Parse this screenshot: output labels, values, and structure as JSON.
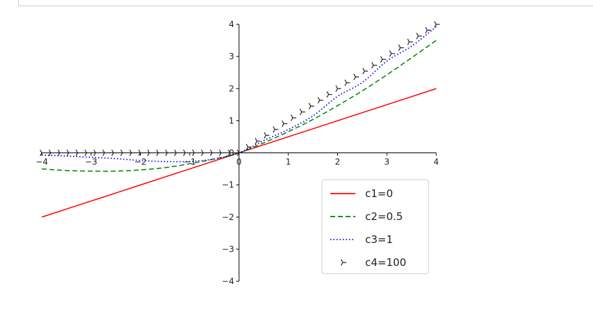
{
  "chart_data": {
    "type": "line",
    "xlim": [
      -4,
      4
    ],
    "ylim": [
      -4,
      4
    ],
    "xticks": [
      -4,
      -3,
      -2,
      -1,
      0,
      1,
      2,
      3,
      4
    ],
    "yticks": [
      -4,
      -3,
      -2,
      -1,
      0,
      1,
      2,
      3,
      4
    ],
    "xtick_labels": [
      "−4",
      "−3",
      "−2",
      "−1",
      "0",
      "1",
      "2",
      "3",
      "4"
    ],
    "ytick_labels": [
      "−4",
      "−3",
      "−2",
      "−1",
      "0",
      "1",
      "2",
      "3",
      "4"
    ],
    "spines": "centered at origin",
    "grid": false,
    "legend_position": "lower-right",
    "x": [
      -4,
      -3.5,
      -3,
      -2.5,
      -2,
      -1.5,
      -1,
      -0.5,
      0,
      0.5,
      1,
      1.5,
      2,
      2.5,
      3,
      3.5,
      4
    ],
    "series": [
      {
        "name": "c1=0",
        "color": "#ff0000",
        "style": "solid",
        "values": [
          -2,
          -1.75,
          -1.5,
          -1.25,
          -1,
          -0.75,
          -0.5,
          -0.25,
          0,
          0.25,
          0.5,
          0.75,
          1,
          1.25,
          1.5,
          1.75,
          2
        ]
      },
      {
        "name": "c2=0.5",
        "color": "#008000",
        "style": "dashed",
        "values": [
          -0.5,
          -0.55,
          -0.57,
          -0.57,
          -0.53,
          -0.46,
          -0.34,
          -0.19,
          0,
          0.31,
          0.66,
          1.04,
          1.47,
          1.93,
          2.43,
          2.96,
          3.5
        ]
      },
      {
        "name": "c3=1",
        "color": "#0000ff",
        "style": "dotted",
        "values": [
          -0.07,
          -0.1,
          -0.14,
          -0.18,
          -0.24,
          -0.27,
          -0.27,
          -0.19,
          0,
          0.38,
          0.73,
          1.15,
          1.76,
          2.19,
          2.86,
          3.32,
          3.93
        ]
      },
      {
        "name": "c4=100",
        "color": "#222222",
        "style": "marker-tri-right",
        "values": [
          0,
          0,
          0,
          0,
          0,
          0,
          0,
          0,
          0,
          0.5,
          1,
          1.5,
          2,
          2.5,
          3,
          3.5,
          4
        ]
      }
    ]
  }
}
